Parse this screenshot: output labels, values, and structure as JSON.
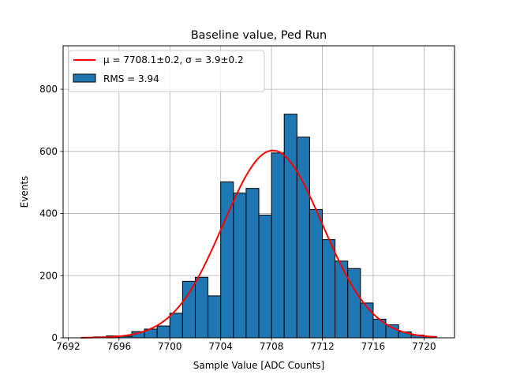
{
  "chart_data": {
    "type": "bar",
    "title": "Baseline value, Ped Run",
    "xlabel": "Sample Value [ADC Counts]",
    "ylabel": "Events",
    "xlim": [
      7691.6,
      7722.4
    ],
    "ylim": [
      0,
      940
    ],
    "xticks": [
      7692,
      7696,
      7700,
      7704,
      7708,
      7712,
      7716,
      7720
    ],
    "yticks": [
      0,
      200,
      400,
      600,
      800
    ],
    "grid": true,
    "legend_position": "top-left",
    "bin_width": 1,
    "bins": [
      {
        "x0": 7694,
        "value": 3
      },
      {
        "x0": 7695,
        "value": 6
      },
      {
        "x0": 7696,
        "value": 5
      },
      {
        "x0": 7697,
        "value": 20
      },
      {
        "x0": 7698,
        "value": 28
      },
      {
        "x0": 7699,
        "value": 38
      },
      {
        "x0": 7700,
        "value": 79
      },
      {
        "x0": 7701,
        "value": 182
      },
      {
        "x0": 7702,
        "value": 195
      },
      {
        "x0": 7703,
        "value": 135
      },
      {
        "x0": 7704,
        "value": 502
      },
      {
        "x0": 7705,
        "value": 466
      },
      {
        "x0": 7706,
        "value": 481
      },
      {
        "x0": 7707,
        "value": 395
      },
      {
        "x0": 7708,
        "value": 595
      },
      {
        "x0": 7709,
        "value": 720
      },
      {
        "x0": 7710,
        "value": 646
      },
      {
        "x0": 7711,
        "value": 413
      },
      {
        "x0": 7712,
        "value": 316
      },
      {
        "x0": 7713,
        "value": 247
      },
      {
        "x0": 7714,
        "value": 223
      },
      {
        "x0": 7715,
        "value": 112
      },
      {
        "x0": 7716,
        "value": 60
      },
      {
        "x0": 7717,
        "value": 42
      },
      {
        "x0": 7718,
        "value": 19
      },
      {
        "x0": 7719,
        "value": 9
      },
      {
        "x0": 7720,
        "value": 4
      }
    ],
    "fit": {
      "label": "$\\mu = 7708.1 \\pm 0.2$, $\\sigma = 3.9 \\pm 0.2$",
      "label_text": "μ = 7708.1±0.2, σ = 3.9±0.2",
      "mu": 7708.1,
      "sigma": 3.9,
      "amplitude": 603,
      "x_range": [
        7693,
        7721
      ]
    },
    "histogram_label": "RMS = 3.94",
    "colors": {
      "bar_fill": "#1f77b4",
      "bar_edge": "#000000",
      "fit_line": "#ff0000",
      "grid": "#b0b0b0"
    }
  }
}
